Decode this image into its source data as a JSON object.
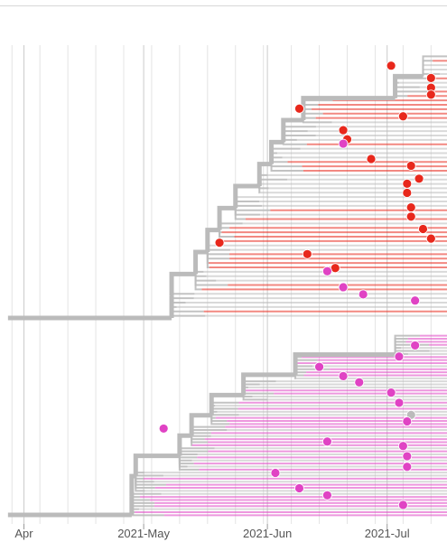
{
  "chart_data": {
    "type": "phylogenetic-tree",
    "x_axis": {
      "tick_labels": [
        "Apr",
        "2021-May",
        "2021-Jun",
        "2021-Jul"
      ],
      "tick_dates": [
        "2021-04-01",
        "2021-05-01",
        "2021-06-01",
        "2021-07-01"
      ],
      "visible_range": [
        "2021-03-26",
        "2021-07-16"
      ],
      "minor_gridlines": "weekly",
      "grid": true
    },
    "colors": {
      "branch": "#bbbbbb",
      "group_red": "#e8281c",
      "group_pink": "#e043c4",
      "gridline": "#e4e4e4"
    },
    "clades": [
      {
        "group": "red",
        "root_date": "2021-03-28",
        "trunk_dates": [
          "2021-05-08",
          "2021-05-14",
          "2021-05-17",
          "2021-05-20",
          "2021-05-24",
          "2021-05-30",
          "2021-06-02",
          "2021-06-05",
          "2021-06-10",
          "2021-07-03",
          "2021-07-10"
        ],
        "tips": [
          {
            "date": "2021-07-02"
          },
          {
            "date": "2021-07-12"
          },
          {
            "date": "2021-07-12"
          },
          {
            "date": "2021-07-12"
          },
          {
            "date": "2021-06-09"
          },
          {
            "date": "2021-07-05"
          },
          {
            "date": "2021-06-20"
          },
          {
            "date": "2021-06-21"
          },
          {
            "date": "2021-06-20",
            "group": "pink"
          },
          {
            "date": "2021-06-27"
          },
          {
            "date": "2021-07-07"
          },
          {
            "date": "2021-07-09"
          },
          {
            "date": "2021-07-06"
          },
          {
            "date": "2021-07-06"
          },
          {
            "date": "2021-07-07"
          },
          {
            "date": "2021-07-07"
          },
          {
            "date": "2021-07-10"
          },
          {
            "date": "2021-07-12"
          },
          {
            "date": "2021-05-20"
          },
          {
            "date": "2021-06-11"
          },
          {
            "date": "2021-06-18"
          },
          {
            "date": "2021-06-16",
            "group": "pink"
          },
          {
            "date": "2021-06-20",
            "group": "pink"
          },
          {
            "date": "2021-06-25",
            "group": "pink"
          },
          {
            "date": "2021-07-08",
            "group": "pink"
          }
        ]
      },
      {
        "group": "pink",
        "root_date": "2021-03-28",
        "trunk_dates": [
          "2021-04-28",
          "2021-04-29",
          "2021-05-10",
          "2021-05-13",
          "2021-05-18",
          "2021-05-26",
          "2021-06-08",
          "2021-07-03"
        ],
        "tips": [
          {
            "date": "2021-07-08"
          },
          {
            "date": "2021-07-04"
          },
          {
            "date": "2021-06-14"
          },
          {
            "date": "2021-06-20"
          },
          {
            "date": "2021-06-24"
          },
          {
            "date": "2021-07-02"
          },
          {
            "date": "2021-07-04"
          },
          {
            "date": "2021-07-07",
            "group": "grey"
          },
          {
            "date": "2021-07-06"
          },
          {
            "date": "2021-05-06"
          },
          {
            "date": "2021-06-16"
          },
          {
            "date": "2021-07-05"
          },
          {
            "date": "2021-07-06"
          },
          {
            "date": "2021-07-06"
          },
          {
            "date": "2021-06-03"
          },
          {
            "date": "2021-06-09"
          },
          {
            "date": "2021-06-16"
          },
          {
            "date": "2021-07-05"
          }
        ]
      }
    ]
  }
}
